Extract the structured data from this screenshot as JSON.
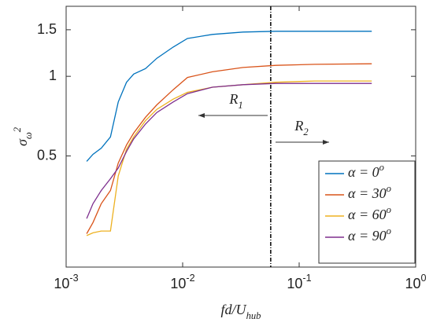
{
  "chart_data": {
    "type": "line",
    "xlabel": "fd/U_hub",
    "ylabel": "σ_ω^2",
    "xscale": "log",
    "yscale": "log",
    "xlim": [
      0.001,
      1
    ],
    "ylim": [
      0.19,
      1.84
    ],
    "xticks": [
      {
        "value": 0.001,
        "label": "10^-3"
      },
      {
        "value": 0.01,
        "label": "10^-2"
      },
      {
        "value": 0.1,
        "label": "10^-1"
      },
      {
        "value": 1,
        "label": "10^0"
      }
    ],
    "yticks": [
      0.5,
      1,
      1.5
    ],
    "vline": 0.057,
    "annotations": [
      {
        "text": "R_1"
      },
      {
        "text": "R_2"
      }
    ],
    "legend": "lower right",
    "x": [
      0.0015,
      0.0017,
      0.002,
      0.0024,
      0.0028,
      0.0033,
      0.0038,
      0.0048,
      0.006,
      0.0083,
      0.011,
      0.018,
      0.033,
      0.063,
      0.136,
      0.42
    ],
    "series": [
      {
        "name": "α = 0^o",
        "color": "#0072bd",
        "values": [
          0.477,
          0.507,
          0.535,
          0.59,
          0.8,
          0.95,
          1.02,
          1.07,
          1.17,
          1.29,
          1.39,
          1.44,
          1.47,
          1.48,
          1.48,
          1.48
        ]
      },
      {
        "name": "α = 30^o",
        "color": "#d95319",
        "values": [
          0.254,
          0.28,
          0.33,
          0.37,
          0.47,
          0.55,
          0.61,
          0.7,
          0.78,
          0.89,
          0.99,
          1.04,
          1.08,
          1.1,
          1.11,
          1.115
        ]
      },
      {
        "name": "α = 60^o",
        "color": "#edb120",
        "values": [
          0.25,
          0.256,
          0.26,
          0.26,
          0.42,
          0.53,
          0.59,
          0.68,
          0.75,
          0.82,
          0.87,
          0.91,
          0.93,
          0.95,
          0.96,
          0.96
        ]
      },
      {
        "name": "α = 90^o",
        "color": "#7e2f8e",
        "values": [
          0.29,
          0.33,
          0.37,
          0.41,
          0.45,
          0.52,
          0.58,
          0.66,
          0.73,
          0.8,
          0.86,
          0.91,
          0.93,
          0.94,
          0.94,
          0.94
        ]
      }
    ]
  }
}
